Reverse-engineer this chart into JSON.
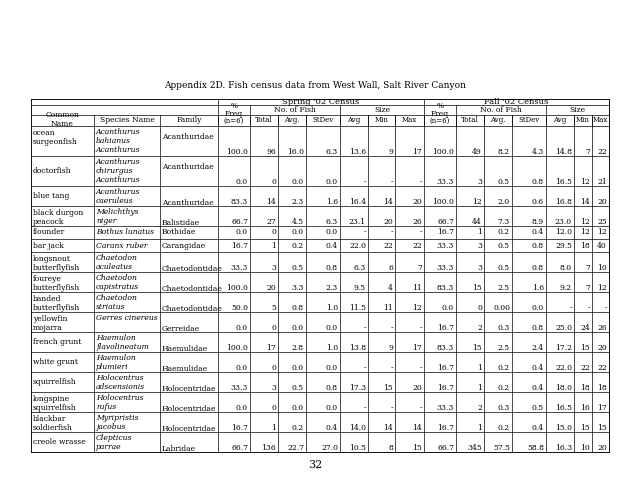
{
  "title": "Appendix 2D. Fish census data from West Wall, Salt River Canyon",
  "page_number": "32",
  "spring_census": "Spring '02 Census",
  "fall_census": "Fall '02 Census",
  "rows": [
    {
      "common_line1": "ocean",
      "common_line2": "surgeonfish",
      "species_line1": "Acanthurus",
      "species_line2": "bahianus",
      "species_line3": "Acanthurus",
      "family": "Acanthuridae",
      "sp_freq": "100.0",
      "sp_total": "96",
      "sp_avg": "16.0",
      "sp_stdev": "6.3",
      "sp_size_avg": "13.6",
      "sp_size_min": "9",
      "sp_size_max": "17",
      "fa_freq": "100.0",
      "fa_total": "49",
      "fa_avg": "8.2",
      "fa_stdev": "4.3",
      "fa_size_avg": "14.8",
      "fa_size_min": "7",
      "fa_size_max": "22",
      "row_lines": 3
    },
    {
      "common_line1": "doctorfish",
      "common_line2": "",
      "species_line1": "Acanthurus",
      "species_line2": "chirurgus",
      "species_line3": "Acanthurus",
      "family": "Acanthuridae",
      "sp_freq": "0.0",
      "sp_total": "0",
      "sp_avg": "0.0",
      "sp_stdev": "0.0",
      "sp_size_avg": "-",
      "sp_size_min": "-",
      "sp_size_max": "-",
      "fa_freq": "33.3",
      "fa_total": "3",
      "fa_avg": "0.5",
      "fa_stdev": "0.8",
      "fa_size_avg": "16.5",
      "fa_size_min": "12",
      "fa_size_max": "21",
      "row_lines": 3
    },
    {
      "common_line1": "blue tang",
      "common_line2": "",
      "species_line1": "Acanthurus",
      "species_line2": "caeruleus",
      "species_line3": "",
      "family": "Acanthuridae",
      "sp_freq": "83.3",
      "sp_total": "14",
      "sp_avg": "2.3",
      "sp_stdev": "1.6",
      "sp_size_avg": "16.4",
      "sp_size_min": "14",
      "sp_size_max": "20",
      "fa_freq": "100.0",
      "fa_total": "12",
      "fa_avg": "2.0",
      "fa_stdev": "0.6",
      "fa_size_avg": "16.8",
      "fa_size_min": "14",
      "fa_size_max": "20",
      "row_lines": 2
    },
    {
      "common_line1": "black durgon",
      "common_line2": "peacock",
      "species_line1": "Melichthys",
      "species_line2": "niger",
      "species_line3": "",
      "family": "Balistidae",
      "sp_freq": "66.7",
      "sp_total": "27",
      "sp_avg": "4.5",
      "sp_stdev": "6.3",
      "sp_size_avg": "23.1",
      "sp_size_min": "20",
      "sp_size_max": "26",
      "fa_freq": "66.7",
      "fa_total": "44",
      "fa_avg": "7.3",
      "fa_stdev": "8.9",
      "fa_size_avg": "23.0",
      "fa_size_min": "12",
      "fa_size_max": "25",
      "row_lines": 2
    },
    {
      "common_line1": "flounder",
      "common_line2": "",
      "species_line1": "Bothus lunatus",
      "species_line2": "",
      "species_line3": "",
      "family": "Bothidae",
      "sp_freq": "0.0",
      "sp_total": "0",
      "sp_avg": "0.0",
      "sp_stdev": "0.0",
      "sp_size_avg": "-",
      "sp_size_min": "-",
      "sp_size_max": "-",
      "fa_freq": "16.7",
      "fa_total": "1",
      "fa_avg": "0.2",
      "fa_stdev": "0.4",
      "fa_size_avg": "12.0",
      "fa_size_min": "12",
      "fa_size_max": "12",
      "row_lines": 1
    },
    {
      "common_line1": "bar jack",
      "common_line2": "",
      "species_line1": "Caranx ruber",
      "species_line2": "",
      "species_line3": "",
      "family": "Carangidae",
      "sp_freq": "16.7",
      "sp_total": "1",
      "sp_avg": "0.2",
      "sp_stdev": "0.4",
      "sp_size_avg": "22.0",
      "sp_size_min": "22",
      "sp_size_max": "22",
      "fa_freq": "33.3",
      "fa_total": "3",
      "fa_avg": "0.5",
      "fa_stdev": "0.8",
      "fa_size_avg": "29.5",
      "fa_size_min": "18",
      "fa_size_max": "40",
      "row_lines": 1
    },
    {
      "common_line1": "longsnout",
      "common_line2": "butterflyfish",
      "species_line1": "Chaetodon",
      "species_line2": "aculeatus",
      "species_line3": "",
      "family": "Chaetodontidae",
      "sp_freq": "33.3",
      "sp_total": "3",
      "sp_avg": "0.5",
      "sp_stdev": "0.8",
      "sp_size_avg": "6.3",
      "sp_size_min": "6",
      "sp_size_max": "7",
      "fa_freq": "33.3",
      "fa_total": "3",
      "fa_avg": "0.5",
      "fa_stdev": "0.8",
      "fa_size_avg": "8.0",
      "fa_size_min": "7",
      "fa_size_max": "10",
      "row_lines": 2
    },
    {
      "common_line1": "foureye",
      "common_line2": "butterflyfish",
      "species_line1": "Chaetodon",
      "species_line2": "capistratus",
      "species_line3": "",
      "family": "Chaetodontidae",
      "sp_freq": "100.0",
      "sp_total": "20",
      "sp_avg": "3.3",
      "sp_stdev": "2.3",
      "sp_size_avg": "9.5",
      "sp_size_min": "4",
      "sp_size_max": "11",
      "fa_freq": "83.3",
      "fa_total": "15",
      "fa_avg": "2.5",
      "fa_stdev": "1.6",
      "fa_size_avg": "9.2",
      "fa_size_min": "7",
      "fa_size_max": "12",
      "row_lines": 2
    },
    {
      "common_line1": "banded",
      "common_line2": "butterflyfish",
      "species_line1": "Chaetodon",
      "species_line2": "striatus",
      "species_line3": "",
      "family": "Chaetodontidae",
      "sp_freq": "50.0",
      "sp_total": "5",
      "sp_avg": "0.8",
      "sp_stdev": "1.0",
      "sp_size_avg": "11.5",
      "sp_size_min": "11",
      "sp_size_max": "12",
      "fa_freq": "0.0",
      "fa_total": "0",
      "fa_avg": "0.00",
      "fa_stdev": "0.0",
      "fa_size_avg": "-",
      "fa_size_min": "-",
      "fa_size_max": "-",
      "row_lines": 2
    },
    {
      "common_line1": "yellowfin",
      "common_line2": "mojarra",
      "species_line1": "Gerres cinereus",
      "species_line2": "",
      "species_line3": "",
      "family": "Gerreidae",
      "sp_freq": "0.0",
      "sp_total": "0",
      "sp_avg": "0.0",
      "sp_stdev": "0.0",
      "sp_size_avg": "-",
      "sp_size_min": "-",
      "sp_size_max": "-",
      "fa_freq": "16.7",
      "fa_total": "2",
      "fa_avg": "0.3",
      "fa_stdev": "0.8",
      "fa_size_avg": "25.0",
      "fa_size_min": "24",
      "fa_size_max": "26",
      "row_lines": 2
    },
    {
      "common_line1": "french grunt",
      "common_line2": "",
      "species_line1": "Haemulon",
      "species_line2": "flavolineatum",
      "species_line3": "",
      "family": "Haemulidae",
      "sp_freq": "100.0",
      "sp_total": "17",
      "sp_avg": "2.8",
      "sp_stdev": "1.0",
      "sp_size_avg": "13.8",
      "sp_size_min": "9",
      "sp_size_max": "17",
      "fa_freq": "83.3",
      "fa_total": "15",
      "fa_avg": "2.5",
      "fa_stdev": "2.4",
      "fa_size_avg": "17.2",
      "fa_size_min": "15",
      "fa_size_max": "20",
      "row_lines": 2
    },
    {
      "common_line1": "white grunt",
      "common_line2": "",
      "species_line1": "Haemulon",
      "species_line2": "plumieri",
      "species_line3": "",
      "family": "Haemulidae",
      "sp_freq": "0.0",
      "sp_total": "0",
      "sp_avg": "0.0",
      "sp_stdev": "0.0",
      "sp_size_avg": "-",
      "sp_size_min": "-",
      "sp_size_max": "-",
      "fa_freq": "16.7",
      "fa_total": "1",
      "fa_avg": "0.2",
      "fa_stdev": "0.4",
      "fa_size_avg": "22.0",
      "fa_size_min": "22",
      "fa_size_max": "22",
      "row_lines": 2
    },
    {
      "common_line1": "squirrelfish",
      "common_line2": "",
      "species_line1": "Holocentrus",
      "species_line2": "adscensionis",
      "species_line3": "",
      "family": "Holocentridae",
      "sp_freq": "33.3",
      "sp_total": "3",
      "sp_avg": "0.5",
      "sp_stdev": "0.8",
      "sp_size_avg": "17.3",
      "sp_size_min": "15",
      "sp_size_max": "20",
      "fa_freq": "16.7",
      "fa_total": "1",
      "fa_avg": "0.2",
      "fa_stdev": "0.4",
      "fa_size_avg": "18.0",
      "fa_size_min": "18",
      "fa_size_max": "18",
      "row_lines": 2
    },
    {
      "common_line1": "longspine",
      "common_line2": "squirrelfish",
      "species_line1": "Holocentrus",
      "species_line2": "rufus",
      "species_line3": "",
      "family": "Holocentridae",
      "sp_freq": "0.0",
      "sp_total": "0",
      "sp_avg": "0.0",
      "sp_stdev": "0.0",
      "sp_size_avg": "-",
      "sp_size_min": "-",
      "sp_size_max": "-",
      "fa_freq": "33.3",
      "fa_total": "2",
      "fa_avg": "0.3",
      "fa_stdev": "0.5",
      "fa_size_avg": "16.5",
      "fa_size_min": "16",
      "fa_size_max": "17",
      "row_lines": 2
    },
    {
      "common_line1": "blackbar",
      "common_line2": "soldierfish",
      "species_line1": "Myripristis",
      "species_line2": "jacobus",
      "species_line3": "",
      "family": "Holocentridae",
      "sp_freq": "16.7",
      "sp_total": "1",
      "sp_avg": "0.2",
      "sp_stdev": "0.4",
      "sp_size_avg": "14.0",
      "sp_size_min": "14",
      "sp_size_max": "14",
      "fa_freq": "16.7",
      "fa_total": "1",
      "fa_avg": "0.2",
      "fa_stdev": "0.4",
      "fa_size_avg": "15.0",
      "fa_size_min": "15",
      "fa_size_max": "15",
      "row_lines": 2
    },
    {
      "common_line1": "creole wrasse",
      "common_line2": "",
      "species_line1": "Clepticus",
      "species_line2": "parrae",
      "species_line3": "",
      "family": "Labridae",
      "sp_freq": "66.7",
      "sp_total": "136",
      "sp_avg": "22.7",
      "sp_stdev": "27.0",
      "sp_size_avg": "10.5",
      "sp_size_min": "8",
      "sp_size_max": "15",
      "fa_freq": "66.7",
      "fa_total": "345",
      "fa_avg": "57.5",
      "fa_stdev": "58.8",
      "fa_size_avg": "16.3",
      "fa_size_min": "10",
      "fa_size_max": "20",
      "row_lines": 2
    }
  ]
}
